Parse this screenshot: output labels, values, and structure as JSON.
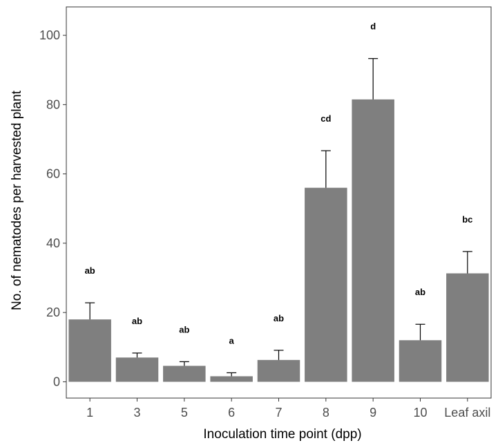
{
  "chart_data": {
    "type": "bar",
    "categories": [
      "1",
      "3",
      "5",
      "6",
      "7",
      "8",
      "9",
      "10",
      "Leaf axil"
    ],
    "values": [
      18,
      7,
      4.6,
      1.6,
      6.3,
      56,
      81.5,
      12,
      31.3
    ],
    "error_upper": [
      22.8,
      8.3,
      5.8,
      2.6,
      9.1,
      66.7,
      93.3,
      16.6,
      37.6
    ],
    "significance": [
      "ab",
      "ab",
      "ab",
      "a",
      "ab",
      "cd",
      "d",
      "ab",
      "bc"
    ],
    "xlabel": "Inoculation time point (dpp)",
    "ylabel": "No. of nematodes per harvested plant",
    "yticks": [
      0,
      20,
      40,
      60,
      80,
      100
    ],
    "ylim": [
      -4.7,
      108.2
    ],
    "bar_color": "#7f7f7f",
    "grid": false
  }
}
